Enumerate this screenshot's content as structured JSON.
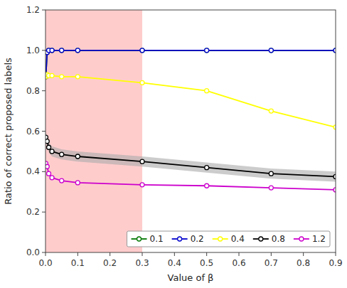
{
  "chart_data": {
    "type": "line",
    "xlabel": "Value of β",
    "ylabel": "Ratio of correct proposed labels",
    "x": [
      0.001,
      0.005,
      0.01,
      0.02,
      0.05,
      0.1,
      0.3,
      0.5,
      0.7,
      0.9
    ],
    "series": [
      {
        "name": "0.1",
        "color": "#007700",
        "values": [
          0.87,
          0.99,
          1.0,
          1.0,
          1.0,
          1.0,
          1.0,
          1.0,
          1.0,
          1.0
        ]
      },
      {
        "name": "0.2",
        "color": "#0000cc",
        "values": [
          0.87,
          0.99,
          1.0,
          1.0,
          1.0,
          1.0,
          1.0,
          1.0,
          1.0,
          1.0
        ]
      },
      {
        "name": "0.4",
        "color": "#ffff00",
        "values": [
          0.87,
          0.88,
          0.875,
          0.875,
          0.87,
          0.87,
          0.84,
          0.8,
          0.7,
          0.62
        ]
      },
      {
        "name": "0.8",
        "color": "#000000",
        "values": [
          0.57,
          0.55,
          0.52,
          0.5,
          0.485,
          0.475,
          0.45,
          0.42,
          0.39,
          0.375
        ],
        "band_upper": [
          0.595,
          0.575,
          0.545,
          0.525,
          0.51,
          0.5,
          0.475,
          0.445,
          0.415,
          0.4
        ],
        "band_lower": [
          0.545,
          0.525,
          0.495,
          0.475,
          0.46,
          0.45,
          0.425,
          0.395,
          0.365,
          0.35
        ],
        "band_color": "#aaaaaa"
      },
      {
        "name": "1.2",
        "color": "#cc00cc",
        "values": [
          0.44,
          0.425,
          0.39,
          0.37,
          0.355,
          0.345,
          0.335,
          0.33,
          0.32,
          0.31
        ]
      }
    ],
    "shaded_region": {
      "values": [
        0.0,
        0.3
      ],
      "color": "#ffcccc"
    },
    "xlim": [
      0.0,
      0.9
    ],
    "ylim": [
      0.0,
      1.2
    ],
    "xticks": [
      {
        "value": 0.0,
        "label": "0.0"
      },
      0.1,
      0.2,
      0.3,
      0.4,
      0.5,
      0.6,
      0.7,
      0.8,
      0.9
    ],
    "yticks": [
      {
        "value": 0.0,
        "label": "0.0"
      },
      0.2,
      0.4,
      0.6,
      0.8,
      {
        "value": 1.0,
        "label": "1.0"
      },
      1.2
    ],
    "marker": "circle",
    "grid": false,
    "legend": "lower right"
  }
}
